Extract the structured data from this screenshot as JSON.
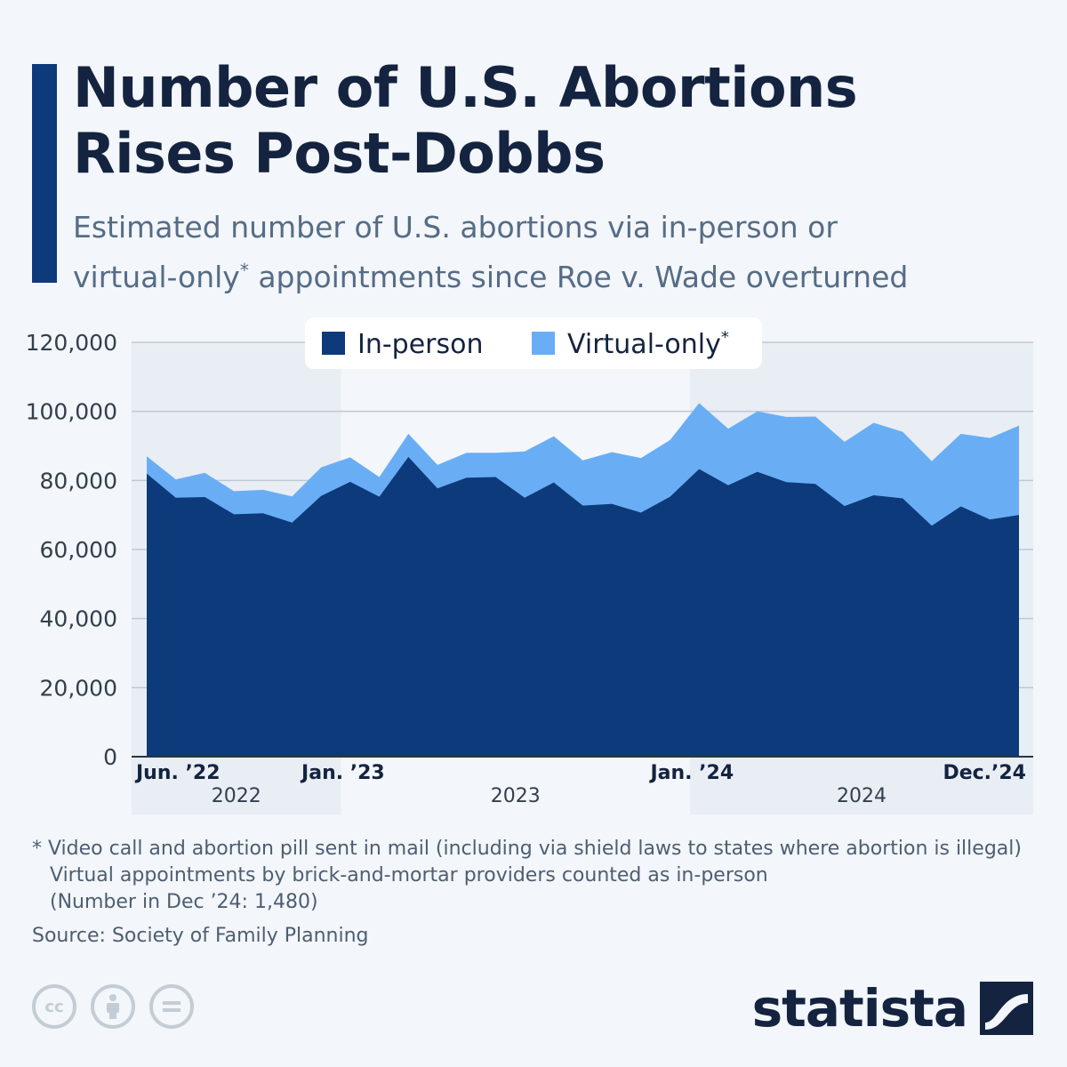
{
  "title_line1": "Number of U.S. Abortions",
  "title_line2": "Rises Post-Dobbs",
  "subtitle_line1": "Estimated number of U.S. abortions via in-person or",
  "subtitle_line2_a": "virtual-only",
  "subtitle_line2_sup": "*",
  "subtitle_line2_b": " appointments since Roe v. Wade overturned",
  "footnote": {
    "line1": "* Video call and abortion pill sent in mail (including via shield laws to states where abortion is illegal)",
    "line2": "Virtual appointments by brick-and-mortar providers counted as in-person",
    "line3": "(Number in Dec ’24: 1,480)"
  },
  "source": "Source: Society of Family Planning",
  "brand": "statista",
  "cc_icons": [
    "creative-commons-icon",
    "attribution-icon",
    "no-derivatives-icon"
  ],
  "colors": {
    "in_person": "#0d3a7a",
    "virtual_only": "#69aef5",
    "accent": "#0d3a7a",
    "title": "#14233f",
    "subtitle": "#566c86",
    "band": "#e9eef5",
    "grid": "#bfc8d3"
  },
  "chart_data": {
    "type": "area",
    "stacked": true,
    "x": [
      "Jun 2022",
      "Jul 2022",
      "Aug 2022",
      "Sep 2022",
      "Oct 2022",
      "Nov 2022",
      "Dec 2022",
      "Jan 2023",
      "Feb 2023",
      "Mar 2023",
      "Apr 2023",
      "May 2023",
      "Jun 2023",
      "Jul 2023",
      "Aug 2023",
      "Sep 2023",
      "Oct 2023",
      "Nov 2023",
      "Dec 2023",
      "Jan 2024",
      "Feb 2024",
      "Mar 2024",
      "Apr 2024",
      "May 2024",
      "Jun 2024",
      "Jul 2024",
      "Aug 2024",
      "Sep 2024",
      "Oct 2024",
      "Nov 2024",
      "Dec 2024"
    ],
    "series": [
      {
        "name": "In-person",
        "values": [
          82000,
          75000,
          75200,
          70200,
          70500,
          67800,
          75500,
          79600,
          75300,
          86800,
          77700,
          80800,
          81000,
          75000,
          79400,
          72700,
          73200,
          70700,
          75300,
          83300,
          78600,
          82500,
          79500,
          79000,
          72600,
          75700,
          74800,
          66900,
          72500,
          68700,
          70000
        ]
      },
      {
        "name": "Virtual-only",
        "values": [
          5000,
          5300,
          7000,
          6700,
          6800,
          7600,
          8300,
          7100,
          5700,
          6700,
          6800,
          7200,
          7000,
          13400,
          13400,
          13100,
          15000,
          15800,
          16400,
          19100,
          16400,
          17500,
          18900,
          19500,
          18600,
          21000,
          19300,
          18700,
          21000,
          23600,
          25900
        ]
      }
    ],
    "legend": [
      {
        "label": "In-person",
        "sup": ""
      },
      {
        "label": "Virtual-only",
        "sup": "*"
      }
    ],
    "legend_position": "top-center",
    "y_ticks": [
      "120,000",
      "100,000",
      "80,000",
      "60,000",
      "40,000",
      "20,000",
      "0"
    ],
    "ylim": [
      0,
      120000
    ],
    "x_tick_labels": [
      {
        "label": "Jun. ’22",
        "at": "Jun 2022"
      },
      {
        "label": "Jan. ’23",
        "at": "Jan 2023"
      },
      {
        "label": "Jan. ’24",
        "at": "Jan 2024"
      },
      {
        "label": "Dec.’24",
        "at": "Dec 2024"
      }
    ],
    "year_bands": [
      {
        "label": "2022",
        "from": "Jun 2022",
        "to": "Dec 2022",
        "shaded": true
      },
      {
        "label": "2023",
        "from": "Jan 2023",
        "to": "Dec 2023",
        "shaded": false
      },
      {
        "label": "2024",
        "from": "Jan 2024",
        "to": "Dec 2024",
        "shaded": true
      }
    ],
    "grid": true
  }
}
